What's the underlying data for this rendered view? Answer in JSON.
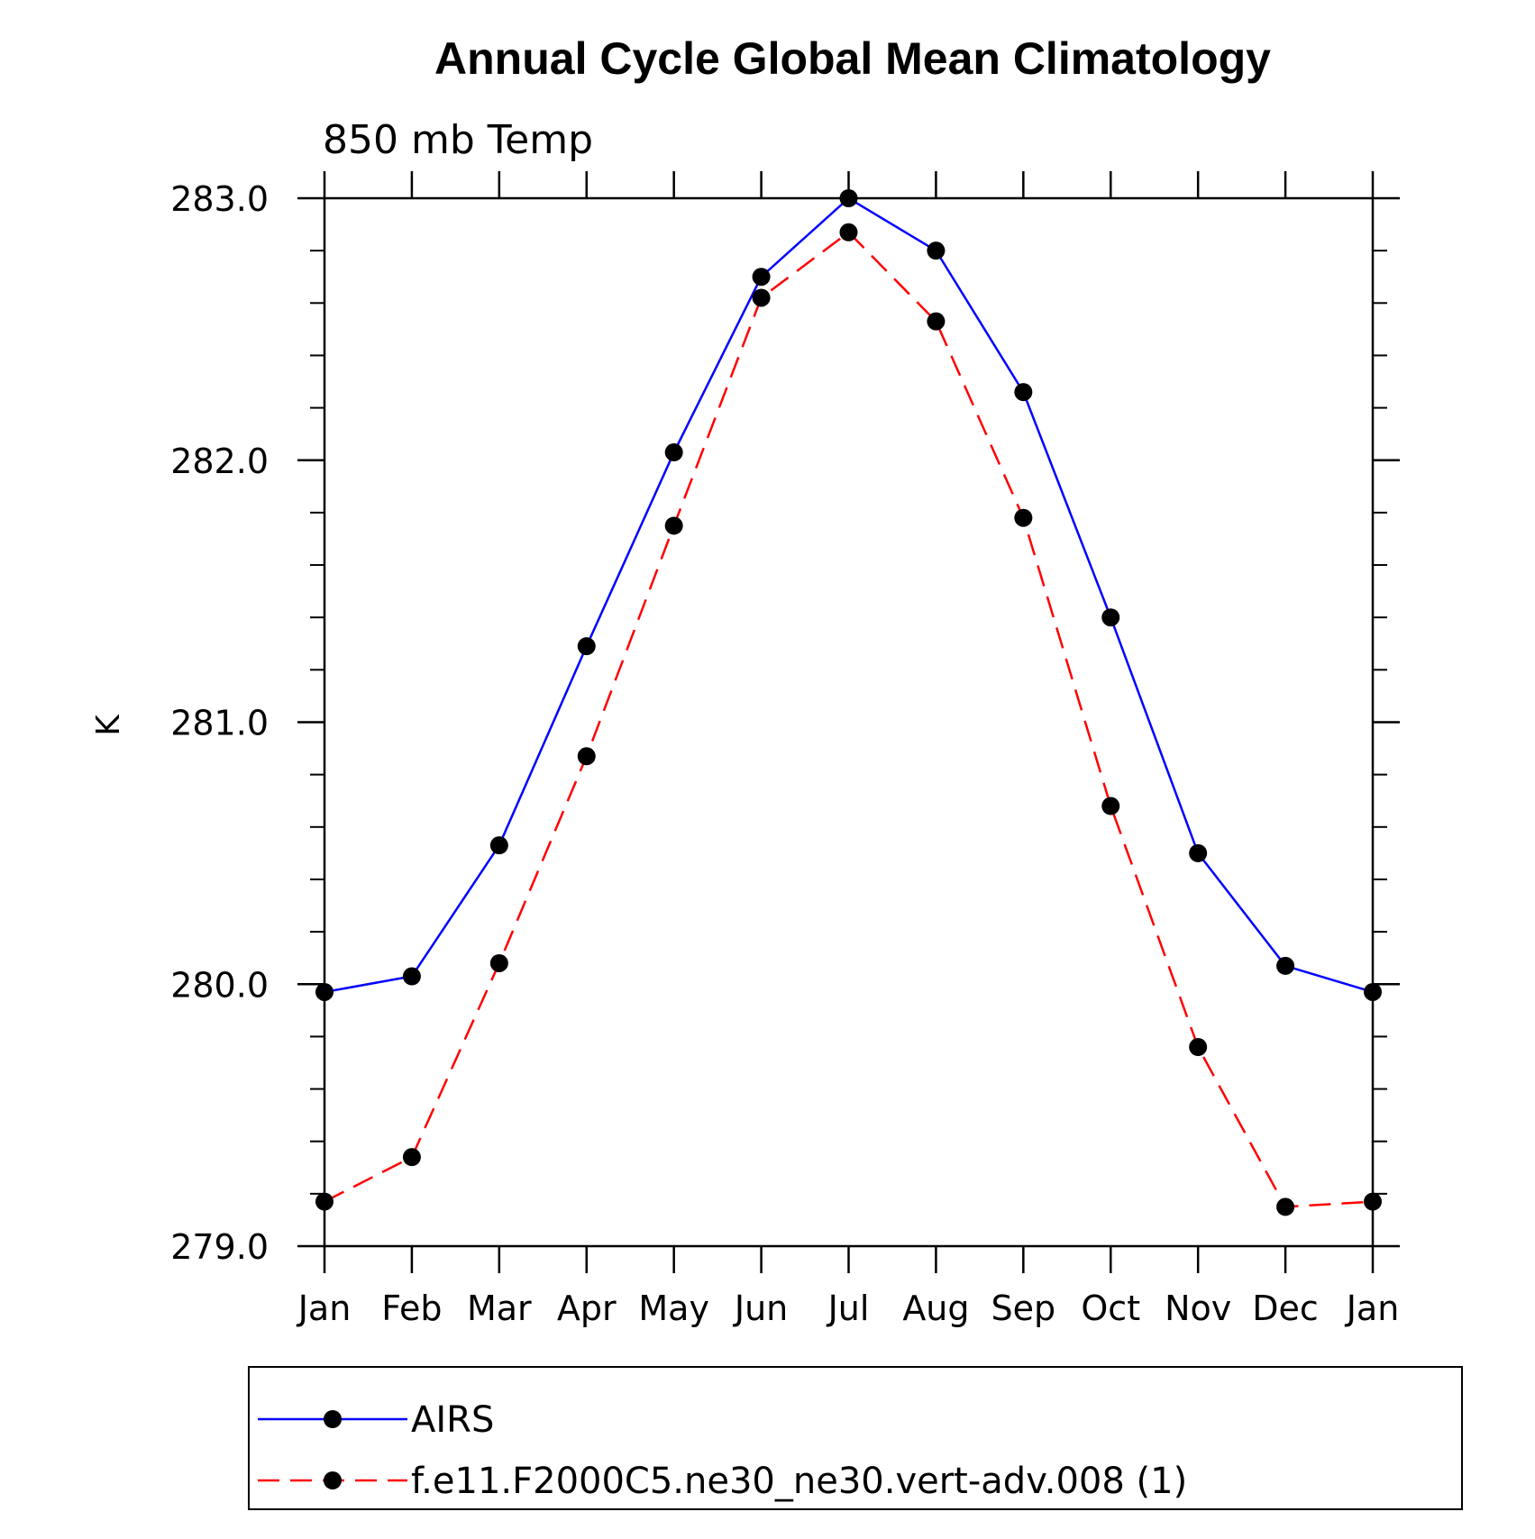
{
  "chart_data": {
    "type": "line",
    "title": "Annual Cycle Global Mean Climatology",
    "subtitle": "850 mb Temp",
    "xlabel": "",
    "ylabel": "K",
    "categories": [
      "Jan",
      "Feb",
      "Mar",
      "Apr",
      "May",
      "Jun",
      "Jul",
      "Aug",
      "Sep",
      "Oct",
      "Nov",
      "Dec",
      "Jan"
    ],
    "ylim": [
      279.0,
      283.0
    ],
    "yticks": [
      279.0,
      280.0,
      281.0,
      282.0,
      283.0
    ],
    "ytick_labels": [
      "279.0",
      "280.0",
      "281.0",
      "282.0",
      "283.0"
    ],
    "y_minor_step": 0.2,
    "grid": false,
    "legend_position": "bottom",
    "series": [
      {
        "name": "AIRS",
        "color": "#0000ff",
        "line_style": "solid",
        "marker": "filled-circle",
        "values": [
          279.97,
          280.03,
          280.53,
          281.29,
          282.03,
          282.7,
          283.0,
          282.8,
          282.26,
          281.4,
          280.5,
          280.07,
          279.97
        ]
      },
      {
        "name": "f.e11.F2000C5.ne30_ne30.vert-adv.008 (1)",
        "color": "#ff0000",
        "line_style": "dashed",
        "marker": "filled-circle",
        "values": [
          279.17,
          279.34,
          280.08,
          280.87,
          281.75,
          282.62,
          282.87,
          282.53,
          281.78,
          280.68,
          279.76,
          279.15,
          279.17
        ]
      }
    ]
  }
}
